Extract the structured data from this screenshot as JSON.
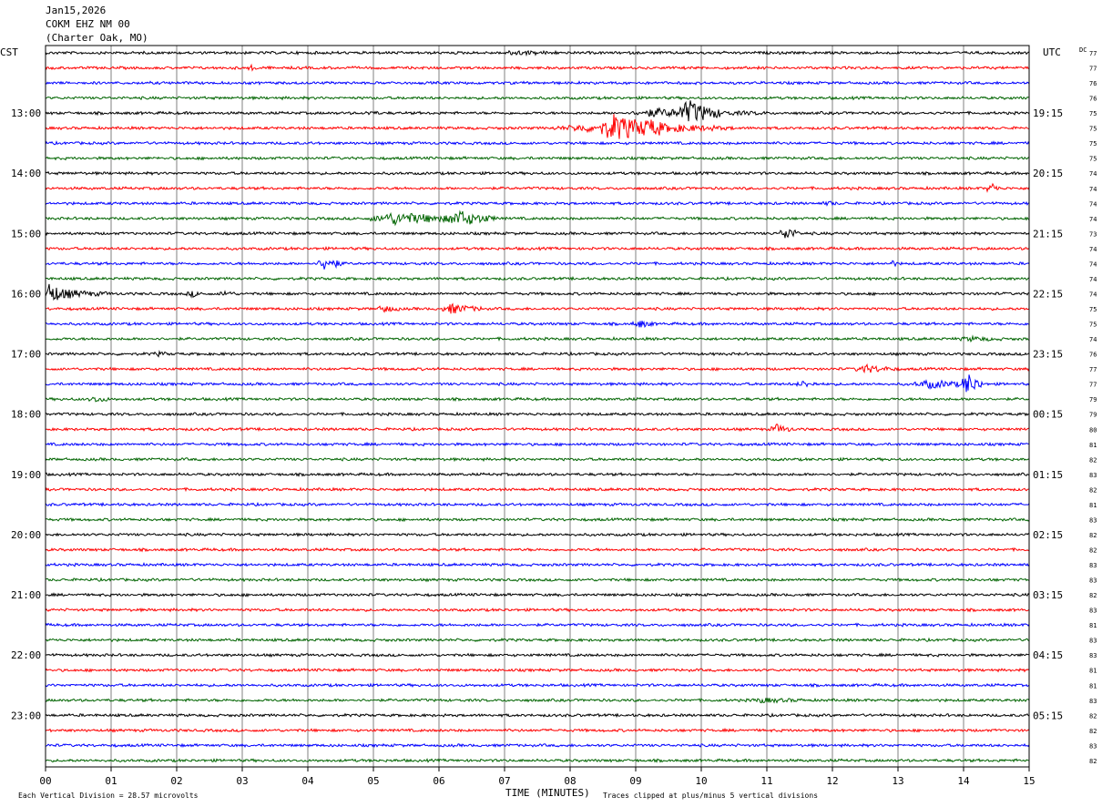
{
  "header": {
    "date": "Jan15,2026",
    "station": "COKM EHZ NM 00",
    "location": "(Charter Oak, MO)"
  },
  "left_axis_label": "CST",
  "right_axis_label": "UTC",
  "dc_label": "DC",
  "footer": {
    "vertical_division": "Each Vertical Division =   28.57 microvolts",
    "xlabel": "TIME (MINUTES)",
    "clip_note": "Traces clipped at plus/minus 5 vertical divisions"
  },
  "colors": [
    "#000000",
    "#ff0000",
    "#0000ff",
    "#006400"
  ],
  "chart_data": {
    "type": "line",
    "title": "COKM EHZ NM 00 (Charter Oak, MO) Jan15,2026",
    "xlabel": "TIME (MINUTES)",
    "xlim": [
      0,
      15
    ],
    "x_ticks": [
      "00",
      "01",
      "02",
      "03",
      "04",
      "05",
      "06",
      "07",
      "08",
      "09",
      "10",
      "11",
      "12",
      "13",
      "14",
      "15"
    ],
    "left_hour_labels": [
      "13:00",
      "14:00",
      "15:00",
      "16:00",
      "17:00",
      "18:00",
      "19:00",
      "20:00",
      "21:00",
      "22:00",
      "23:00"
    ],
    "right_hour_labels": [
      "19:15",
      "20:15",
      "21:15",
      "22:15",
      "23:15",
      "00:15",
      "01:15",
      "02:15",
      "03:15",
      "04:15",
      "05:15"
    ],
    "traces_per_hour": 4,
    "minutes_per_trace": 15,
    "trace_count": 48,
    "dc_values": [
      77,
      77,
      76,
      76,
      75,
      75,
      75,
      75,
      74,
      74,
      74,
      74,
      73,
      74,
      74,
      74,
      74,
      75,
      75,
      74,
      76,
      77,
      77,
      79,
      79,
      80,
      81,
      82,
      83,
      82,
      81,
      83,
      82,
      82,
      83,
      83,
      82,
      83,
      81,
      83,
      83,
      81,
      81,
      83,
      82,
      82,
      83,
      82
    ],
    "events": [
      {
        "trace": 0,
        "minute": 7.0,
        "amp": 2,
        "dur": 0.8
      },
      {
        "trace": 1,
        "minute": 3.1,
        "amp": 2,
        "dur": 0.2
      },
      {
        "trace": 4,
        "minute": 4.9,
        "amp": 2,
        "dur": 0.2
      },
      {
        "trace": 4,
        "minute": 9.0,
        "amp": 4,
        "dur": 2.0
      },
      {
        "trace": 4,
        "minute": 9.7,
        "amp": 12,
        "dur": 0.6
      },
      {
        "trace": 5,
        "minute": 7.8,
        "amp": 3,
        "dur": 2.5
      },
      {
        "trace": 5,
        "minute": 8.5,
        "amp": 14,
        "dur": 0.9
      },
      {
        "trace": 5,
        "minute": 9.0,
        "amp": 4,
        "dur": 1.5
      },
      {
        "trace": 9,
        "minute": 14.4,
        "amp": 7,
        "dur": 0.15
      },
      {
        "trace": 10,
        "minute": 11.9,
        "amp": 2,
        "dur": 0.2
      },
      {
        "trace": 11,
        "minute": 5.0,
        "amp": 6,
        "dur": 1.9
      },
      {
        "trace": 11,
        "minute": 6.2,
        "amp": 7,
        "dur": 0.6
      },
      {
        "trace": 12,
        "minute": 11.25,
        "amp": 8,
        "dur": 0.25
      },
      {
        "trace": 14,
        "minute": 4.2,
        "amp": 8,
        "dur": 0.35
      },
      {
        "trace": 14,
        "minute": 12.9,
        "amp": 3,
        "dur": 0.1
      },
      {
        "trace": 16,
        "minute": 0.0,
        "amp": 13,
        "dur": 0.3
      },
      {
        "trace": 16,
        "minute": 0.2,
        "amp": 4,
        "dur": 0.8
      },
      {
        "trace": 16,
        "minute": 2.2,
        "amp": 3,
        "dur": 0.2
      },
      {
        "trace": 16,
        "minute": 2.7,
        "amp": 3,
        "dur": 0.2
      },
      {
        "trace": 17,
        "minute": 5.1,
        "amp": 4,
        "dur": 0.3
      },
      {
        "trace": 17,
        "minute": 6.1,
        "amp": 5,
        "dur": 0.6
      },
      {
        "trace": 18,
        "minute": 9.0,
        "amp": 4,
        "dur": 0.3
      },
      {
        "trace": 19,
        "minute": 14.0,
        "amp": 2,
        "dur": 0.6
      },
      {
        "trace": 20,
        "minute": 1.7,
        "amp": 2,
        "dur": 0.2
      },
      {
        "trace": 21,
        "minute": 12.4,
        "amp": 4,
        "dur": 0.6
      },
      {
        "trace": 22,
        "minute": 11.5,
        "amp": 3,
        "dur": 0.3
      },
      {
        "trace": 22,
        "minute": 13.3,
        "amp": 4,
        "dur": 1.0
      },
      {
        "trace": 22,
        "minute": 14.0,
        "amp": 12,
        "dur": 0.3
      },
      {
        "trace": 23,
        "minute": 0.7,
        "amp": 3,
        "dur": 0.3
      },
      {
        "trace": 25,
        "minute": 11.1,
        "amp": 5,
        "dur": 0.3
      },
      {
        "trace": 43,
        "minute": 10.8,
        "amp": 2,
        "dur": 0.8
      }
    ]
  }
}
